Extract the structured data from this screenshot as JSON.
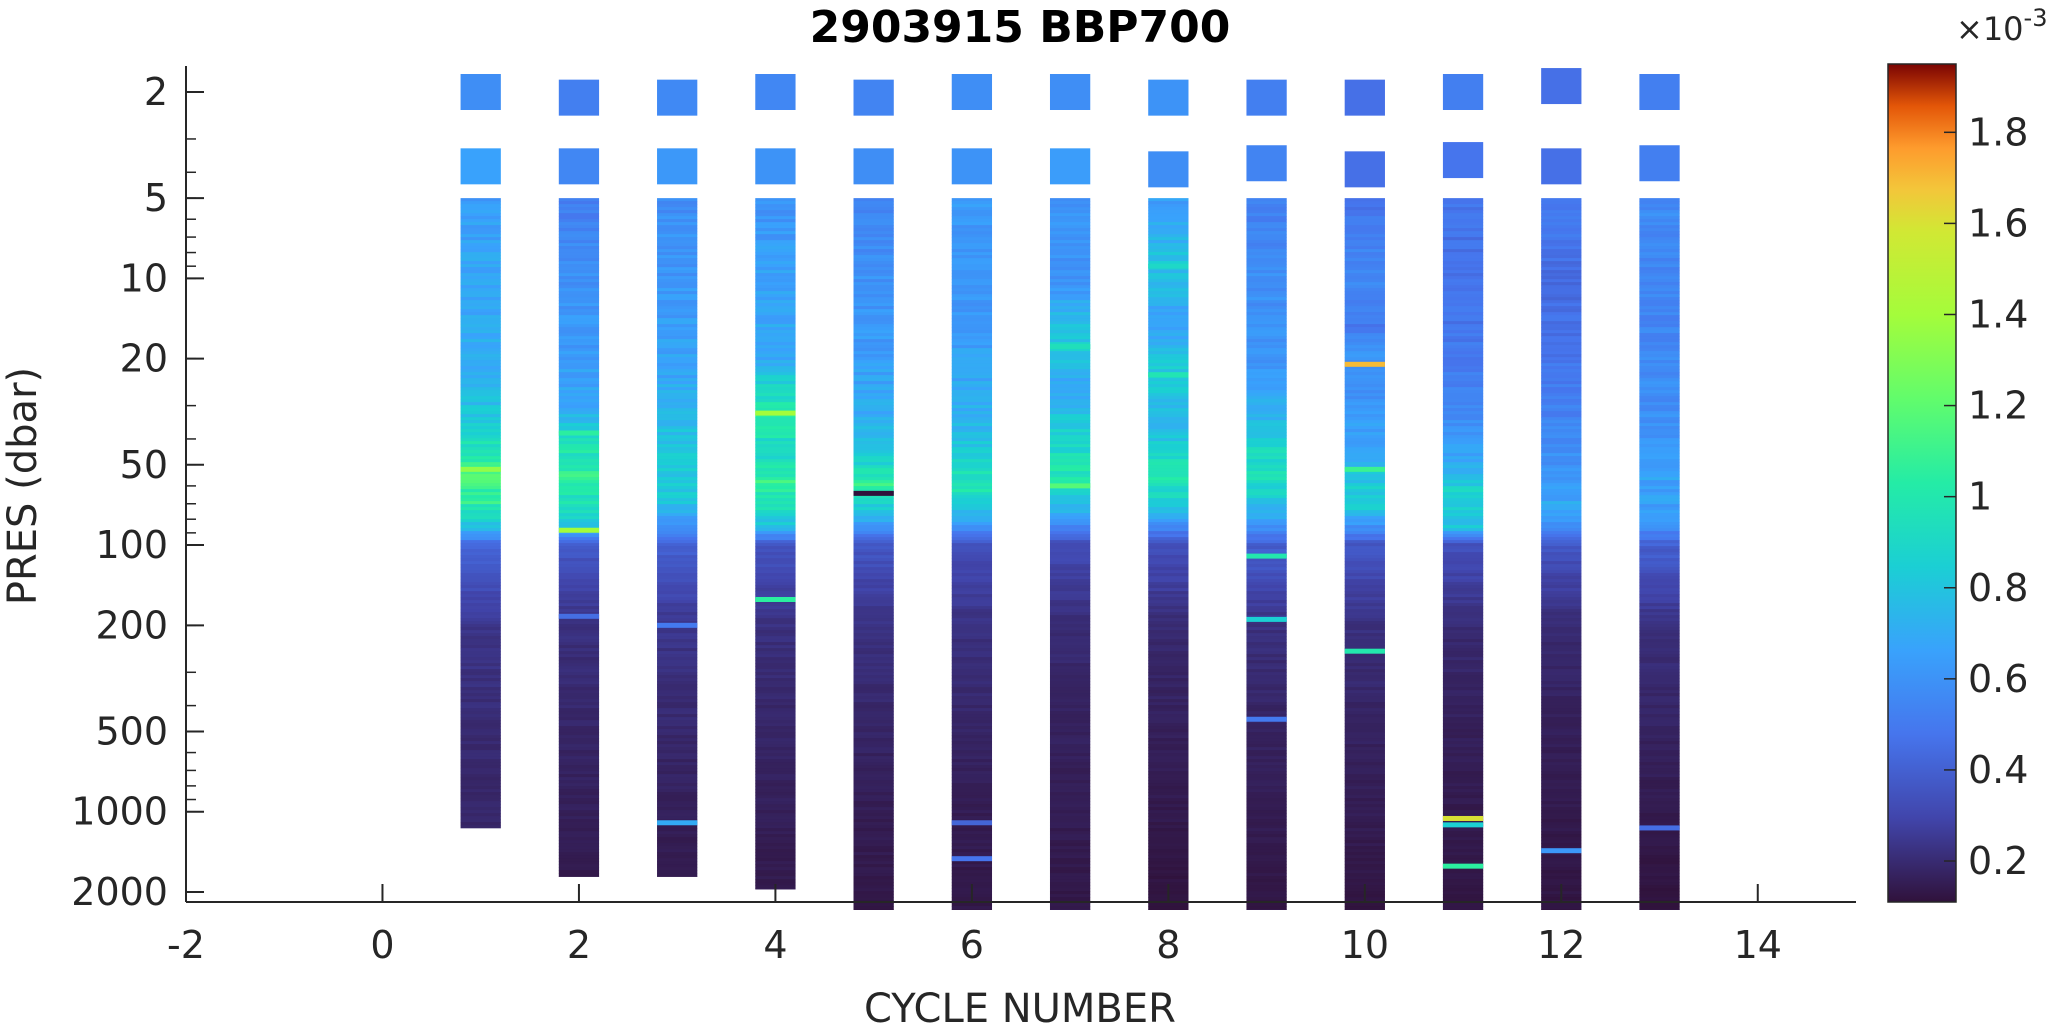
{
  "chart_data": {
    "type": "heatmap",
    "title": "2903915 BBP700",
    "xlabel": "CYCLE NUMBER",
    "ylabel": "PRES (dbar)",
    "xlim": [
      -2,
      15
    ],
    "x_ticks": [
      -2,
      0,
      2,
      4,
      6,
      8,
      10,
      12,
      14
    ],
    "x_tick_labels": [
      "-2",
      "0",
      "2",
      "4",
      "6",
      "8",
      "10",
      "12",
      "14"
    ],
    "yscale": "log",
    "y_reversed": true,
    "ylim": [
      1.6,
      2300
    ],
    "y_ticks": [
      2,
      5,
      10,
      20,
      50,
      100,
      200,
      500,
      1000,
      2000
    ],
    "y_tick_labels": [
      "2",
      "5",
      "10",
      "20",
      "50",
      "100",
      "200",
      "500",
      "1000",
      "2000"
    ],
    "colorbar": {
      "clim": [
        0.00011,
        0.00195
      ],
      "exponent_label": "×10",
      "exponent_value": "-3",
      "ticks": [
        0.0002,
        0.0004,
        0.0006,
        0.0008,
        0.001,
        0.0012,
        0.0014,
        0.0016,
        0.0018
      ],
      "tick_labels": [
        "0.2",
        "0.4",
        "0.6",
        "0.8",
        "1",
        "1.2",
        "1.4",
        "1.6",
        "1.8"
      ],
      "colormap": "turbo"
    },
    "grid": false,
    "profiles": [
      {
        "cycle": 1,
        "surface": [
          {
            "p": 2.0,
            "v": 0.00058
          },
          {
            "p": 3.8,
            "v": 0.00066
          }
        ],
        "profile_top": 5,
        "profile_bottom": 1150,
        "depth_values": [
          [
            5,
            0.00064
          ],
          [
            10,
            0.00068
          ],
          [
            20,
            0.0007
          ],
          [
            30,
            0.00078
          ],
          [
            45,
            0.00098
          ],
          [
            55,
            0.00112
          ],
          [
            70,
            0.00105
          ],
          [
            85,
            0.0008
          ],
          [
            100,
            0.00042
          ],
          [
            200,
            0.00024
          ],
          [
            500,
            0.0002
          ],
          [
            1150,
            0.00018
          ]
        ],
        "anomalies": [
          {
            "p": 52,
            "v": 0.00135
          }
        ]
      },
      {
        "cycle": 2,
        "surface": [
          {
            "p": 2.1,
            "v": 0.00052
          },
          {
            "p": 3.8,
            "v": 0.00055
          }
        ],
        "profile_top": 5,
        "profile_bottom": 1750,
        "depth_values": [
          [
            5,
            0.0005
          ],
          [
            10,
            0.0006
          ],
          [
            20,
            0.00064
          ],
          [
            30,
            0.00068
          ],
          [
            45,
            0.00098
          ],
          [
            55,
            0.00105
          ],
          [
            70,
            0.00095
          ],
          [
            85,
            0.00078
          ],
          [
            100,
            0.00038
          ],
          [
            200,
            0.00022
          ],
          [
            500,
            0.00018
          ],
          [
            1000,
            0.00016
          ],
          [
            1750,
            0.00014
          ]
        ],
        "anomalies": [
          {
            "p": 38,
            "v": 0.00105
          },
          {
            "p": 88,
            "v": 0.0014
          },
          {
            "p": 185,
            "v": 0.00045
          }
        ]
      },
      {
        "cycle": 3,
        "surface": [
          {
            "p": 2.1,
            "v": 0.00056
          },
          {
            "p": 3.8,
            "v": 0.00062
          }
        ],
        "profile_top": 5,
        "profile_bottom": 1750,
        "depth_values": [
          [
            5,
            0.00058
          ],
          [
            10,
            0.00062
          ],
          [
            20,
            0.00066
          ],
          [
            30,
            0.00072
          ],
          [
            50,
            0.00085
          ],
          [
            70,
            0.0008
          ],
          [
            100,
            0.0004
          ],
          [
            200,
            0.00024
          ],
          [
            500,
            0.00019
          ],
          [
            1000,
            0.00016
          ],
          [
            1750,
            0.00014
          ]
        ],
        "anomalies": [
          {
            "p": 1100,
            "v": 0.0007
          },
          {
            "p": 200,
            "v": 0.0005
          }
        ]
      },
      {
        "cycle": 4,
        "surface": [
          {
            "p": 2.0,
            "v": 0.00055
          },
          {
            "p": 3.8,
            "v": 0.0006
          }
        ],
        "profile_top": 5,
        "profile_bottom": 1950,
        "depth_values": [
          [
            5,
            0.0006
          ],
          [
            10,
            0.00066
          ],
          [
            20,
            0.0007
          ],
          [
            32,
            0.00105
          ],
          [
            45,
            0.00088
          ],
          [
            58,
            0.00108
          ],
          [
            70,
            0.00095
          ],
          [
            85,
            0.00078
          ],
          [
            100,
            0.00036
          ],
          [
            200,
            0.00022
          ],
          [
            500,
            0.00018
          ],
          [
            1000,
            0.00016
          ],
          [
            1950,
            0.00014
          ]
        ],
        "anomalies": [
          {
            "p": 32,
            "v": 0.0014
          },
          {
            "p": 160,
            "v": 0.00105
          }
        ]
      },
      {
        "cycle": 5,
        "surface": [
          {
            "p": 2.1,
            "v": 0.00054
          },
          {
            "p": 3.8,
            "v": 0.00058
          }
        ],
        "profile_top": 5,
        "profile_bottom": 2400,
        "depth_values": [
          [
            5,
            0.00054
          ],
          [
            10,
            0.0006
          ],
          [
            20,
            0.00064
          ],
          [
            35,
            0.00072
          ],
          [
            50,
            0.0009
          ],
          [
            60,
            0.00108
          ],
          [
            75,
            0.0008
          ],
          [
            100,
            0.00036
          ],
          [
            200,
            0.00022
          ],
          [
            500,
            0.00018
          ],
          [
            1000,
            0.00015
          ],
          [
            2400,
            0.00013
          ]
        ],
        "anomalies": [
          {
            "p": 64,
            "v": 0.0001
          }
        ]
      },
      {
        "cycle": 6,
        "surface": [
          {
            "p": 2.0,
            "v": 0.00058
          },
          {
            "p": 3.8,
            "v": 0.0006
          }
        ],
        "profile_top": 5,
        "profile_bottom": 2600,
        "depth_values": [
          [
            5,
            0.00064
          ],
          [
            10,
            0.0006
          ],
          [
            20,
            0.00066
          ],
          [
            35,
            0.00074
          ],
          [
            50,
            0.0009
          ],
          [
            60,
            0.001
          ],
          [
            80,
            0.0007
          ],
          [
            100,
            0.00034
          ],
          [
            200,
            0.00022
          ],
          [
            500,
            0.00018
          ],
          [
            1000,
            0.00015
          ],
          [
            2600,
            0.00013
          ]
        ],
        "anomalies": [
          {
            "p": 1100,
            "v": 0.00042
          },
          {
            "p": 1500,
            "v": 0.00048
          }
        ]
      },
      {
        "cycle": 7,
        "surface": [
          {
            "p": 2.0,
            "v": 0.00058
          },
          {
            "p": 3.8,
            "v": 0.00064
          }
        ],
        "profile_top": 5,
        "profile_bottom": 2600,
        "depth_values": [
          [
            5,
            0.00062
          ],
          [
            10,
            0.0006
          ],
          [
            18,
            0.00084
          ],
          [
            25,
            0.00068
          ],
          [
            40,
            0.00088
          ],
          [
            55,
            0.00098
          ],
          [
            70,
            0.0008
          ],
          [
            100,
            0.00032
          ],
          [
            200,
            0.0002
          ],
          [
            500,
            0.00017
          ],
          [
            1000,
            0.00015
          ],
          [
            2600,
            0.00013
          ]
        ],
        "anomalies": [
          {
            "p": 18,
            "v": 0.00095
          },
          {
            "p": 60,
            "v": 0.00118
          }
        ]
      },
      {
        "cycle": 8,
        "surface": [
          {
            "p": 2.1,
            "v": 0.0006
          },
          {
            "p": 3.9,
            "v": 0.00058
          }
        ],
        "profile_top": 5,
        "profile_bottom": 2600,
        "depth_values": [
          [
            5,
            0.00064
          ],
          [
            9,
            0.0008
          ],
          [
            15,
            0.00066
          ],
          [
            23,
            0.00085
          ],
          [
            35,
            0.00072
          ],
          [
            55,
            0.001
          ],
          [
            70,
            0.00085
          ],
          [
            100,
            0.00034
          ],
          [
            200,
            0.0002
          ],
          [
            500,
            0.00016
          ],
          [
            1000,
            0.00014
          ],
          [
            2600,
            0.00011
          ]
        ],
        "anomalies": [
          {
            "p": 9,
            "v": 0.0009
          },
          {
            "p": 23,
            "v": 0.00098
          }
        ]
      },
      {
        "cycle": 9,
        "surface": [
          {
            "p": 2.1,
            "v": 0.00052
          },
          {
            "p": 3.7,
            "v": 0.00054
          }
        ],
        "profile_top": 5,
        "profile_bottom": 2600,
        "depth_values": [
          [
            5,
            0.00052
          ],
          [
            10,
            0.00058
          ],
          [
            20,
            0.00062
          ],
          [
            30,
            0.0007
          ],
          [
            45,
            0.0009
          ],
          [
            55,
            0.00098
          ],
          [
            70,
            0.0008
          ],
          [
            85,
            0.0006
          ],
          [
            100,
            0.0004
          ],
          [
            200,
            0.00022
          ],
          [
            500,
            0.00017
          ],
          [
            1000,
            0.00015
          ],
          [
            2600,
            0.00012
          ]
        ],
        "anomalies": [
          {
            "p": 110,
            "v": 0.001
          },
          {
            "p": 190,
            "v": 0.00085
          },
          {
            "p": 450,
            "v": 0.0005
          }
        ]
      },
      {
        "cycle": 10,
        "surface": [
          {
            "p": 2.1,
            "v": 0.00046
          },
          {
            "p": 3.9,
            "v": 0.00046
          }
        ],
        "profile_top": 5,
        "profile_bottom": 2600,
        "depth_values": [
          [
            5,
            0.00046
          ],
          [
            10,
            0.00058
          ],
          [
            15,
            0.0005
          ],
          [
            21,
            0.00062
          ],
          [
            30,
            0.0006
          ],
          [
            45,
            0.0007
          ],
          [
            55,
            0.0008
          ],
          [
            70,
            0.00088
          ],
          [
            100,
            0.00036
          ],
          [
            200,
            0.00022
          ],
          [
            500,
            0.00017
          ],
          [
            1000,
            0.00015
          ],
          [
            2600,
            0.00012
          ]
        ],
        "anomalies": [
          {
            "p": 21,
            "v": 0.0017
          },
          {
            "p": 52,
            "v": 0.0011
          },
          {
            "p": 250,
            "v": 0.001
          }
        ]
      },
      {
        "cycle": 11,
        "surface": [
          {
            "p": 2.0,
            "v": 0.00052
          },
          {
            "p": 3.6,
            "v": 0.00048
          }
        ],
        "profile_top": 5,
        "profile_bottom": 2600,
        "depth_values": [
          [
            5,
            0.00048
          ],
          [
            10,
            0.00046
          ],
          [
            20,
            0.0005
          ],
          [
            35,
            0.00058
          ],
          [
            50,
            0.0007
          ],
          [
            65,
            0.0009
          ],
          [
            85,
            0.0008
          ],
          [
            100,
            0.00034
          ],
          [
            200,
            0.0002
          ],
          [
            500,
            0.00016
          ],
          [
            1000,
            0.00014
          ],
          [
            2600,
            0.00012
          ]
        ],
        "anomalies": [
          {
            "p": 1060,
            "v": 0.0016
          },
          {
            "p": 1120,
            "v": 0.00085
          },
          {
            "p": 1600,
            "v": 0.00105
          }
        ]
      },
      {
        "cycle": 12,
        "surface": [
          {
            "p": 1.9,
            "v": 0.00046
          },
          {
            "p": 3.8,
            "v": 0.00046
          }
        ],
        "profile_top": 5,
        "profile_bottom": 2600,
        "depth_values": [
          [
            5,
            0.00052
          ],
          [
            10,
            0.00044
          ],
          [
            20,
            0.00048
          ],
          [
            35,
            0.00054
          ],
          [
            55,
            0.00062
          ],
          [
            75,
            0.0007
          ],
          [
            100,
            0.00036
          ],
          [
            200,
            0.0002
          ],
          [
            500,
            0.00016
          ],
          [
            1000,
            0.00014
          ],
          [
            2600,
            0.00012
          ]
        ],
        "anomalies": [
          {
            "p": 1400,
            "v": 0.00062
          }
        ]
      },
      {
        "cycle": 13,
        "surface": [
          {
            "p": 2.0,
            "v": 0.00052
          },
          {
            "p": 3.7,
            "v": 0.00052
          }
        ],
        "profile_top": 5,
        "profile_bottom": 2600,
        "depth_values": [
          [
            5,
            0.00058
          ],
          [
            10,
            0.00054
          ],
          [
            20,
            0.00056
          ],
          [
            35,
            0.0006
          ],
          [
            55,
            0.00066
          ],
          [
            80,
            0.00064
          ],
          [
            100,
            0.0004
          ],
          [
            200,
            0.00022
          ],
          [
            500,
            0.00017
          ],
          [
            1000,
            0.00014
          ],
          [
            2600,
            0.00011
          ]
        ],
        "anomalies": [
          {
            "p": 1150,
            "v": 0.00045
          }
        ]
      }
    ]
  }
}
